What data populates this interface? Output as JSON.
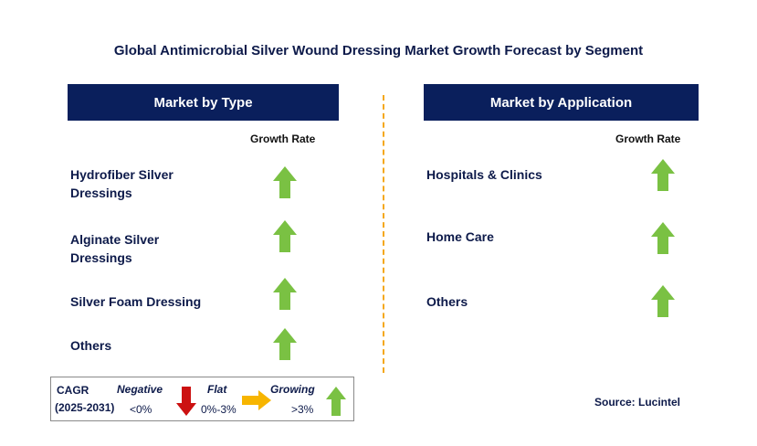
{
  "title": "Global Antimicrobial Silver Wound Dressing Market Growth Forecast by Segment",
  "left_panel": {
    "header": "Market by Type",
    "growth_rate_label": "Growth Rate",
    "items": [
      {
        "line1": "Hydrofiber Silver",
        "line2": "Dressings",
        "trend": "growing"
      },
      {
        "line1": "Alginate Silver",
        "line2": "Dressings",
        "trend": "growing"
      },
      {
        "line1": "Silver Foam Dressing",
        "line2": "",
        "trend": "growing"
      },
      {
        "line1": "Others",
        "line2": "",
        "trend": "growing"
      }
    ]
  },
  "right_panel": {
    "header": "Market by Application",
    "growth_rate_label": "Growth Rate",
    "items": [
      {
        "line1": "Hospitals & Clinics",
        "trend": "growing"
      },
      {
        "line1": "Home Care",
        "trend": "growing"
      },
      {
        "line1": "Others",
        "trend": "growing"
      }
    ]
  },
  "legend": {
    "cagr_label": "CAGR",
    "period": "(2025-2031)",
    "negative_label": "Negative",
    "negative_range": "<0%",
    "flat_label": "Flat",
    "flat_range": "0%-3%",
    "growing_label": "Growing",
    "growing_range": ">3%"
  },
  "source": "Source: Lucintel",
  "colors": {
    "header_bg": "#0a1f5c",
    "growing_arrow": "#7ac143",
    "negative_arrow": "#cc1111",
    "flat_arrow": "#f7b500",
    "divider": "#f4a81d"
  },
  "icons": {
    "growing": "up-arrow-icon",
    "negative": "down-arrow-icon",
    "flat": "right-arrow-icon"
  }
}
